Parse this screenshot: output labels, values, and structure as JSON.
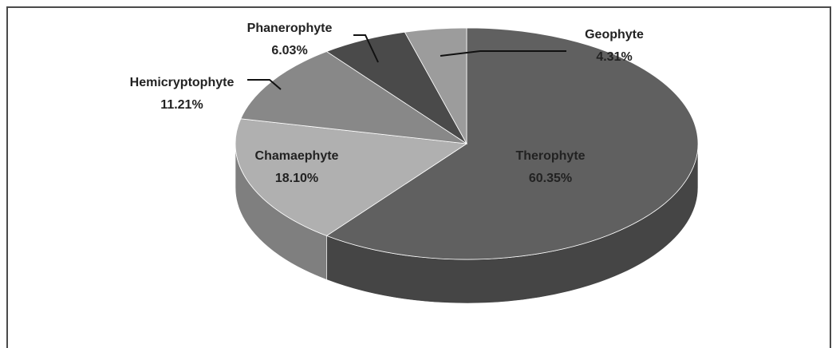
{
  "chart_data": {
    "type": "pie",
    "categories": [
      "Therophyte",
      "Chamaephyte",
      "Hemicryptophyte",
      "Phanerophyte",
      "Geophyte"
    ],
    "values": [
      60.35,
      18.1,
      11.21,
      6.03,
      4.31
    ],
    "value_labels": [
      "60.35%",
      "18.10%",
      "11.21%",
      "6.03%",
      "4.31%"
    ],
    "colors": [
      "#606060",
      "#b0b0b0",
      "#888888",
      "#4a4a4a",
      "#9c9c9c"
    ]
  }
}
